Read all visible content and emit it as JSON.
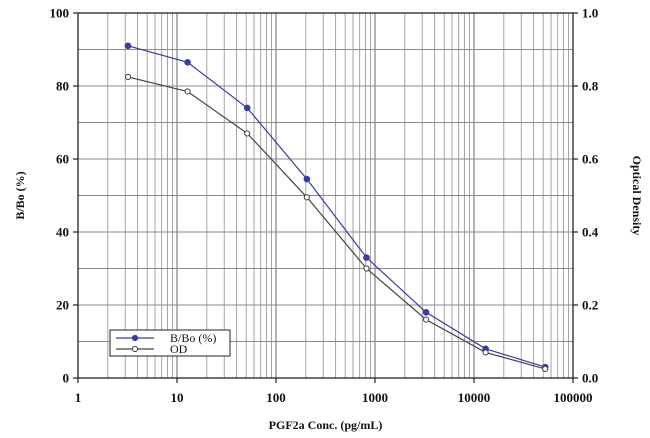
{
  "chart_data": {
    "type": "line",
    "x_scale": "log",
    "xlim": [
      1,
      100000
    ],
    "ylim": [
      0,
      100
    ],
    "y2lim": [
      0,
      1
    ],
    "grid": true,
    "legend_position": "bottom-left",
    "xlabel": "PGF2a Conc. (pg/mL)",
    "ylabel": "B/Bo (%)",
    "y2label": "Optical Density",
    "x_ticks": [
      {
        "value": 1,
        "label": "1"
      },
      {
        "value": 10,
        "label": "10"
      },
      {
        "value": 100,
        "label": "100"
      },
      {
        "value": 1000,
        "label": "1000"
      },
      {
        "value": 10000,
        "label": "10000"
      },
      {
        "value": 100000,
        "label": "100000"
      }
    ],
    "y_ticks": [
      {
        "value": 0,
        "label": "0"
      },
      {
        "value": 20,
        "label": "20"
      },
      {
        "value": 40,
        "label": "40"
      },
      {
        "value": 60,
        "label": "60"
      },
      {
        "value": 80,
        "label": "80"
      },
      {
        "value": 100,
        "label": "100"
      }
    ],
    "y2_ticks": [
      {
        "value": 0,
        "label": "0.0"
      },
      {
        "value": 0.2,
        "label": "0.2"
      },
      {
        "value": 0.4,
        "label": "0.4"
      },
      {
        "value": 0.6,
        "label": "0.6"
      },
      {
        "value": 0.8,
        "label": "0.8"
      },
      {
        "value": 1.0,
        "label": "1.0"
      }
    ],
    "series": [
      {
        "name": "B/Bo (%)",
        "axis": "left",
        "color": "#3a3aa8",
        "marker": "filled-circle",
        "x": [
          3.2,
          12.8,
          51.2,
          205,
          820,
          3280,
          13100,
          52400
        ],
        "y": [
          91,
          86.5,
          74,
          54.5,
          33,
          18,
          8,
          3
        ]
      },
      {
        "name": "OD",
        "axis": "right",
        "color": "#444444",
        "marker": "open-circle",
        "x": [
          3.2,
          12.8,
          51.2,
          205,
          820,
          3280,
          13100,
          52400
        ],
        "y": [
          0.825,
          0.785,
          0.67,
          0.495,
          0.3,
          0.16,
          0.07,
          0.025
        ]
      }
    ]
  }
}
